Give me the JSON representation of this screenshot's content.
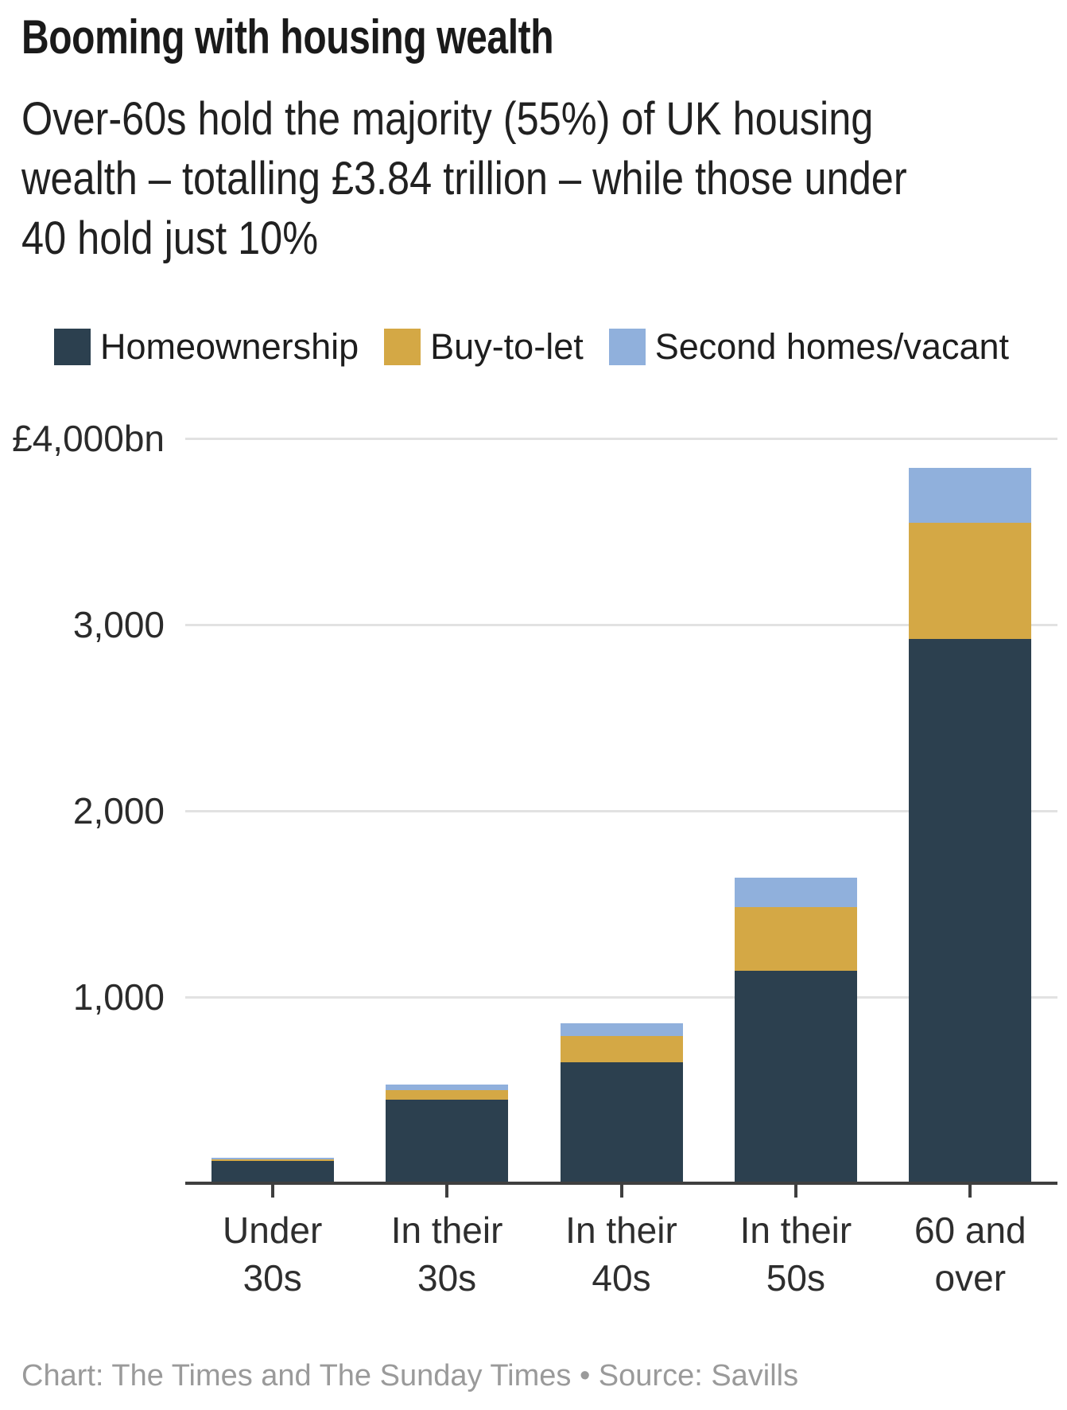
{
  "header": {
    "title": "Booming with housing wealth",
    "subtitle": "Over-60s hold the majority (55%) of UK housing\nwealth – totalling £3.84 trillion – while those under\n40 hold just 10%"
  },
  "footer": {
    "credit": "Chart: The Times and The Sunday Times • Source: Savills"
  },
  "chart_data": {
    "type": "bar",
    "stacked": true,
    "title": "Booming with housing wealth",
    "unit": "£bn",
    "categories": [
      "Under\n30s",
      "In their\n30s",
      "In their\n40s",
      "In their\n50s",
      "60 and\nover"
    ],
    "series": [
      {
        "name": "Homeownership",
        "color": "#2c404f",
        "values": [
          120,
          450,
          650,
          1140,
          2925
        ]
      },
      {
        "name": "Buy-to-let",
        "color": "#d4a845",
        "values": [
          7,
          52,
          140,
          345,
          620
        ]
      },
      {
        "name": "Second homes/vacant",
        "color": "#90b0dc",
        "values": [
          8,
          26,
          70,
          155,
          295
        ]
      }
    ],
    "y_axis": {
      "min": 0,
      "max": 4000,
      "ticks": [
        {
          "value": 4000,
          "label": "£4,000bn"
        },
        {
          "value": 3000,
          "label": "3,000"
        },
        {
          "value": 2000,
          "label": "2,000"
        },
        {
          "value": 1000,
          "label": "1,000"
        }
      ]
    },
    "grid": true,
    "legend_position": "top"
  }
}
